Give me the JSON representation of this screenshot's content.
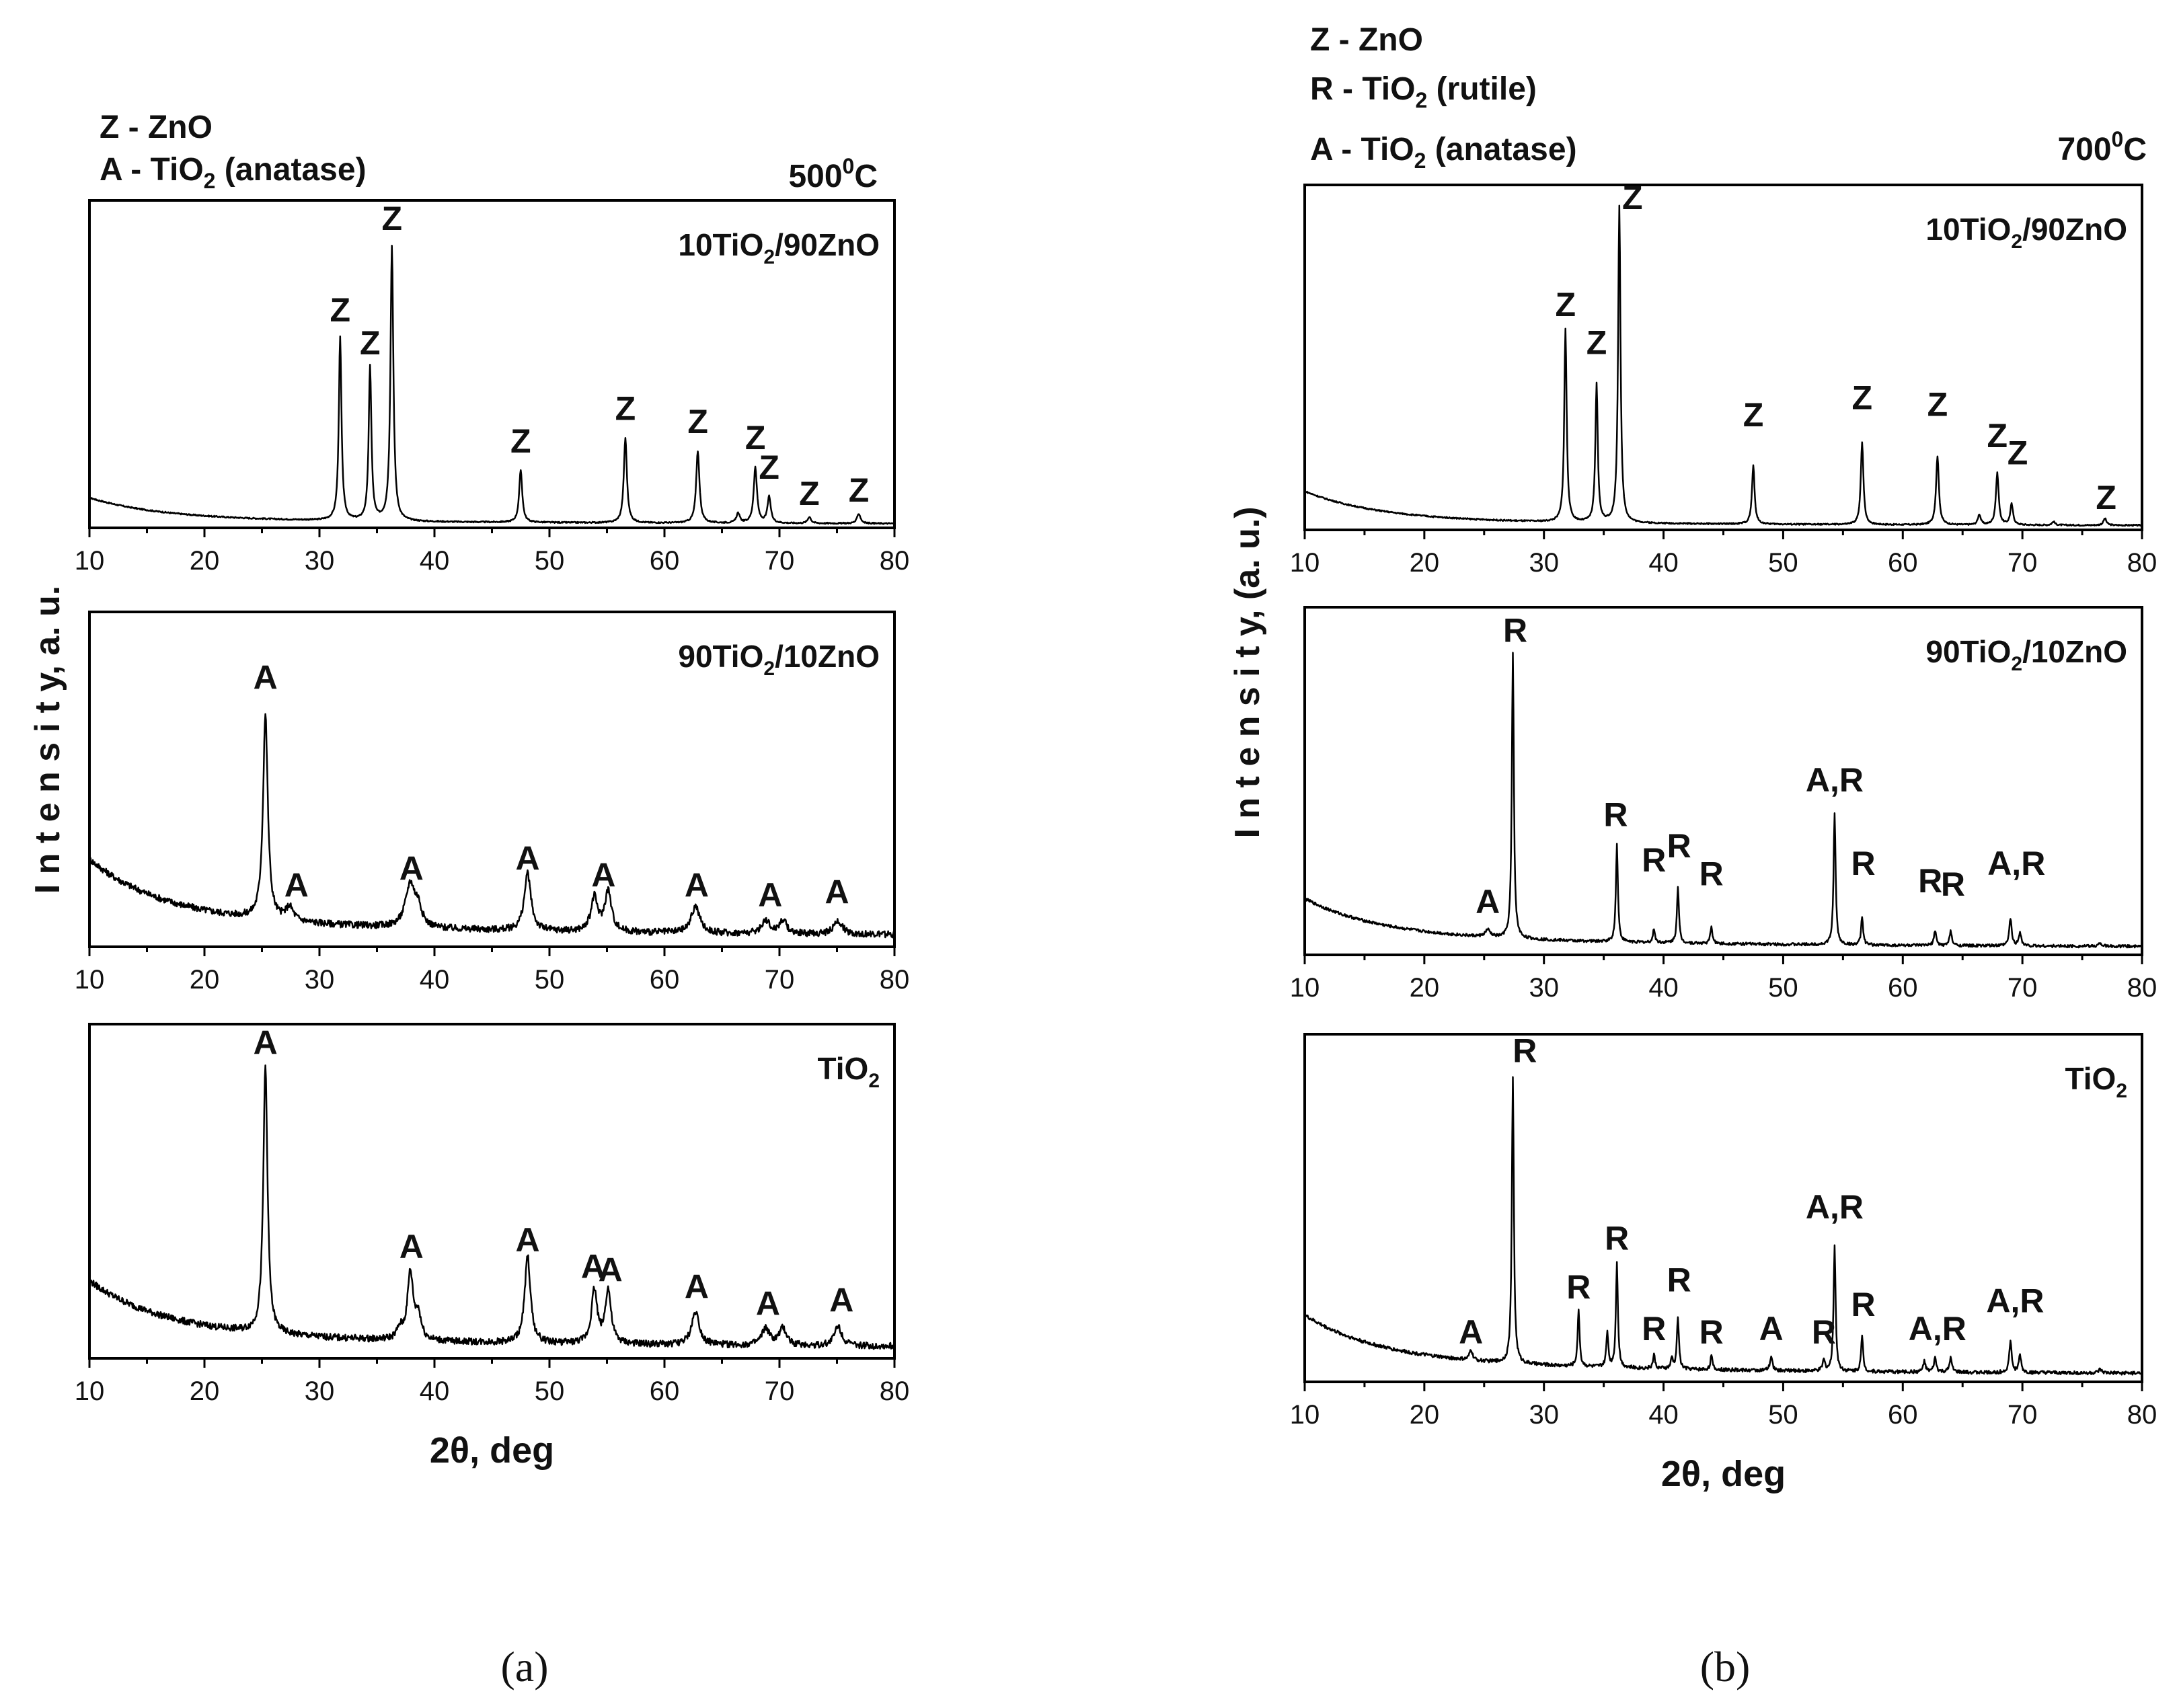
{
  "figure": {
    "caption_a": "(a)",
    "caption_b": "(b)",
    "left_legend": [
      {
        "letter": "Z",
        "text": " - ZnO"
      },
      {
        "letter": "A",
        "text": " - TiO",
        "sub": "2",
        "after": " (anatase)"
      }
    ],
    "right_legend": [
      {
        "letter": "Z",
        "text": " - ZnO"
      },
      {
        "letter": "R",
        "text": " - TiO",
        "sub": "2",
        "after": " (rutile)"
      },
      {
        "letter": "A",
        "text": " - TiO",
        "sub": "2",
        "after": " (anatase)"
      }
    ],
    "left_temp": {
      "base": "500",
      "sup": "0",
      "unit": "C"
    },
    "right_temp": {
      "base": "700",
      "sup": "0",
      "unit": "C"
    },
    "ylabel_left": "I n t e n s i t y, a. u.",
    "ylabel_right": "I n t e n s i t y, (a. u.)",
    "xlabel": "2θ, deg",
    "xticks": [
      "10",
      "20",
      "30",
      "40",
      "50",
      "60",
      "70",
      "80"
    ]
  },
  "chart_data": [
    {
      "type": "line",
      "id": "a1",
      "label": "10TiO2/90ZnO",
      "title_parts": [
        "10TiO",
        "2",
        "/90ZnO"
      ],
      "xlim": [
        10,
        80
      ],
      "xlabel": "",
      "baseline": [
        0.06,
        0.02,
        0.0
      ],
      "noise": 0.002,
      "peaks": [
        [
          31.8,
          0.56,
          0.14
        ],
        [
          34.4,
          0.47,
          0.14
        ],
        [
          36.3,
          0.84,
          0.15
        ],
        [
          47.5,
          0.16,
          0.16
        ],
        [
          56.6,
          0.26,
          0.16
        ],
        [
          62.9,
          0.22,
          0.17
        ],
        [
          66.4,
          0.03,
          0.17
        ],
        [
          67.9,
          0.17,
          0.17
        ],
        [
          69.1,
          0.08,
          0.17
        ],
        [
          72.6,
          0.02,
          0.17
        ],
        [
          76.9,
          0.03,
          0.18
        ]
      ],
      "markers": [
        {
          "x": 31.8,
          "y": 0.63,
          "text": "Z"
        },
        {
          "x": 34.4,
          "y": 0.53,
          "text": "Z"
        },
        {
          "x": 36.3,
          "y": 0.91,
          "text": "Z"
        },
        {
          "x": 47.5,
          "y": 0.23,
          "text": "Z"
        },
        {
          "x": 56.6,
          "y": 0.33,
          "text": "Z"
        },
        {
          "x": 62.9,
          "y": 0.29,
          "text": "Z"
        },
        {
          "x": 67.9,
          "y": 0.24,
          "text": "Z"
        },
        {
          "x": 69.1,
          "y": 0.15,
          "text": "Z"
        },
        {
          "x": 72.6,
          "y": 0.07,
          "text": "Z"
        },
        {
          "x": 76.9,
          "y": 0.08,
          "text": "Z"
        }
      ]
    },
    {
      "type": "line",
      "id": "a2",
      "label": "90TiO2/10ZnO",
      "title_parts": [
        "90TiO",
        "2",
        "/10ZnO"
      ],
      "xlim": [
        10,
        80
      ],
      "xlabel": "",
      "baseline": [
        0.16,
        0.07,
        0.02
      ],
      "noise": 0.01,
      "peaks": [
        [
          25.3,
          0.61,
          0.25
        ],
        [
          27.4,
          0.04,
          0.4
        ],
        [
          37.9,
          0.13,
          0.5
        ],
        [
          38.6,
          0.05,
          0.35
        ],
        [
          48.1,
          0.17,
          0.35
        ],
        [
          53.9,
          0.1,
          0.35
        ],
        [
          55.1,
          0.12,
          0.35
        ],
        [
          62.7,
          0.08,
          0.45
        ],
        [
          68.8,
          0.04,
          0.4
        ],
        [
          70.3,
          0.04,
          0.4
        ],
        [
          75.1,
          0.04,
          0.45
        ]
      ],
      "markers": [
        {
          "x": 25.3,
          "y": 0.77,
          "text": "A"
        },
        {
          "x": 28.0,
          "y": 0.15,
          "text": "A"
        },
        {
          "x": 38.0,
          "y": 0.2,
          "text": "A"
        },
        {
          "x": 48.1,
          "y": 0.23,
          "text": "A"
        },
        {
          "x": 54.7,
          "y": 0.18,
          "text": "A"
        },
        {
          "x": 62.8,
          "y": 0.15,
          "text": "A"
        },
        {
          "x": 69.2,
          "y": 0.12,
          "text": "A"
        },
        {
          "x": 75.0,
          "y": 0.13,
          "text": "A"
        }
      ]
    },
    {
      "type": "line",
      "id": "a3",
      "label": "TiO2",
      "title_parts": [
        "TiO",
        "2",
        ""
      ],
      "xlim": [
        10,
        80
      ],
      "xlabel": "2θ, deg",
      "baseline": [
        0.14,
        0.06,
        0.02
      ],
      "noise": 0.01,
      "peaks": [
        [
          25.3,
          0.8,
          0.22
        ],
        [
          37.0,
          0.03,
          0.3
        ],
        [
          37.9,
          0.2,
          0.3
        ],
        [
          38.6,
          0.07,
          0.3
        ],
        [
          48.1,
          0.26,
          0.3
        ],
        [
          53.9,
          0.16,
          0.3
        ],
        [
          55.1,
          0.16,
          0.3
        ],
        [
          62.7,
          0.1,
          0.4
        ],
        [
          68.8,
          0.05,
          0.4
        ],
        [
          70.3,
          0.05,
          0.4
        ],
        [
          75.1,
          0.06,
          0.4
        ]
      ],
      "markers": [
        {
          "x": 25.3,
          "y": 0.91,
          "text": "A"
        },
        {
          "x": 38.0,
          "y": 0.3,
          "text": "A"
        },
        {
          "x": 48.1,
          "y": 0.32,
          "text": "A"
        },
        {
          "x": 53.8,
          "y": 0.24,
          "text": "A"
        },
        {
          "x": 55.3,
          "y": 0.23,
          "text": "A"
        },
        {
          "x": 62.8,
          "y": 0.18,
          "text": "A"
        },
        {
          "x": 69.0,
          "y": 0.13,
          "text": "A"
        },
        {
          "x": 75.4,
          "y": 0.14,
          "text": "A"
        }
      ]
    },
    {
      "type": "line",
      "id": "b1",
      "label": "10TiO2/90ZnO",
      "title_parts": [
        "10TiO",
        "2",
        "/90ZnO"
      ],
      "xlim": [
        10,
        80
      ],
      "xlabel": "",
      "baseline": [
        0.08,
        0.02,
        0.0
      ],
      "noise": 0.002,
      "peaks": [
        [
          31.8,
          0.56,
          0.12
        ],
        [
          34.4,
          0.4,
          0.12
        ],
        [
          36.3,
          0.92,
          0.12
        ],
        [
          47.5,
          0.17,
          0.13
        ],
        [
          56.6,
          0.24,
          0.13
        ],
        [
          62.9,
          0.2,
          0.14
        ],
        [
          66.4,
          0.03,
          0.14
        ],
        [
          67.9,
          0.15,
          0.14
        ],
        [
          69.1,
          0.06,
          0.14
        ],
        [
          72.6,
          0.01,
          0.15
        ],
        [
          76.9,
          0.02,
          0.15
        ]
      ],
      "markers": [
        {
          "x": 31.8,
          "y": 0.62,
          "text": "Z"
        },
        {
          "x": 34.4,
          "y": 0.51,
          "text": "Z"
        },
        {
          "x": 37.4,
          "y": 0.93,
          "text": "Z"
        },
        {
          "x": 47.5,
          "y": 0.3,
          "text": "Z"
        },
        {
          "x": 56.6,
          "y": 0.35,
          "text": "Z"
        },
        {
          "x": 62.9,
          "y": 0.33,
          "text": "Z"
        },
        {
          "x": 67.9,
          "y": 0.24,
          "text": "Z"
        },
        {
          "x": 69.6,
          "y": 0.19,
          "text": "Z"
        },
        {
          "x": 77.0,
          "y": 0.06,
          "text": "Z"
        }
      ]
    },
    {
      "type": "line",
      "id": "b2",
      "label": "90TiO2/10ZnO",
      "title_parts": [
        "90TiO",
        "2",
        "/10ZnO"
      ],
      "xlim": [
        10,
        80
      ],
      "xlabel": "",
      "baseline": [
        0.1,
        0.04,
        0.01
      ],
      "noise": 0.004,
      "peaks": [
        [
          25.3,
          0.02,
          0.25
        ],
        [
          27.4,
          0.82,
          0.1
        ],
        [
          36.1,
          0.28,
          0.1
        ],
        [
          39.2,
          0.04,
          0.1
        ],
        [
          41.2,
          0.16,
          0.1
        ],
        [
          44.0,
          0.05,
          0.1
        ],
        [
          54.3,
          0.38,
          0.1
        ],
        [
          56.6,
          0.08,
          0.1
        ],
        [
          62.7,
          0.04,
          0.12
        ],
        [
          64.0,
          0.04,
          0.12
        ],
        [
          69.0,
          0.08,
          0.12
        ],
        [
          69.8,
          0.04,
          0.12
        ],
        [
          76.5,
          0.01,
          0.15
        ]
      ],
      "markers": [
        {
          "x": 25.3,
          "y": 0.12,
          "text": "A"
        },
        {
          "x": 27.6,
          "y": 0.9,
          "text": "R"
        },
        {
          "x": 36.0,
          "y": 0.37,
          "text": "R"
        },
        {
          "x": 39.2,
          "y": 0.24,
          "text": "R"
        },
        {
          "x": 41.3,
          "y": 0.28,
          "text": "R"
        },
        {
          "x": 44.0,
          "y": 0.2,
          "text": "R"
        },
        {
          "x": 54.3,
          "y": 0.47,
          "text": "A,R"
        },
        {
          "x": 56.7,
          "y": 0.23,
          "text": "R"
        },
        {
          "x": 62.3,
          "y": 0.18,
          "text": "R"
        },
        {
          "x": 64.2,
          "y": 0.17,
          "text": "R"
        },
        {
          "x": 69.5,
          "y": 0.23,
          "text": "A,R"
        }
      ]
    },
    {
      "type": "line",
      "id": "b3",
      "label": "TiO2",
      "title_parts": [
        "TiO",
        "2",
        ""
      ],
      "xlim": [
        10,
        80
      ],
      "xlabel": "2θ, deg",
      "baseline": [
        0.12,
        0.05,
        0.01
      ],
      "noise": 0.005,
      "peaks": [
        [
          23.9,
          0.03,
          0.15
        ],
        [
          27.4,
          0.82,
          0.1
        ],
        [
          32.9,
          0.16,
          0.1
        ],
        [
          35.3,
          0.1,
          0.1
        ],
        [
          36.1,
          0.3,
          0.1
        ],
        [
          39.2,
          0.04,
          0.1
        ],
        [
          40.7,
          0.03,
          0.1
        ],
        [
          41.2,
          0.15,
          0.1
        ],
        [
          44.0,
          0.04,
          0.1
        ],
        [
          49.0,
          0.04,
          0.12
        ],
        [
          53.4,
          0.03,
          0.12
        ],
        [
          54.3,
          0.36,
          0.1
        ],
        [
          56.6,
          0.1,
          0.1
        ],
        [
          61.8,
          0.03,
          0.12
        ],
        [
          62.7,
          0.04,
          0.12
        ],
        [
          64.0,
          0.04,
          0.12
        ],
        [
          69.0,
          0.09,
          0.12
        ],
        [
          69.8,
          0.05,
          0.12
        ],
        [
          76.5,
          0.01,
          0.15
        ]
      ],
      "markers": [
        {
          "x": 23.9,
          "y": 0.11,
          "text": "A"
        },
        {
          "x": 28.4,
          "y": 0.92,
          "text": "R"
        },
        {
          "x": 32.9,
          "y": 0.24,
          "text": "R"
        },
        {
          "x": 36.1,
          "y": 0.38,
          "text": "R"
        },
        {
          "x": 39.2,
          "y": 0.12,
          "text": "R"
        },
        {
          "x": 41.3,
          "y": 0.26,
          "text": "R"
        },
        {
          "x": 44.0,
          "y": 0.11,
          "text": "R"
        },
        {
          "x": 49.0,
          "y": 0.12,
          "text": "A"
        },
        {
          "x": 53.4,
          "y": 0.11,
          "text": "R"
        },
        {
          "x": 54.3,
          "y": 0.47,
          "text": "A,R"
        },
        {
          "x": 56.7,
          "y": 0.19,
          "text": "R"
        },
        {
          "x": 62.9,
          "y": 0.12,
          "text": "A,R"
        },
        {
          "x": 69.4,
          "y": 0.2,
          "text": "A,R"
        }
      ]
    }
  ]
}
